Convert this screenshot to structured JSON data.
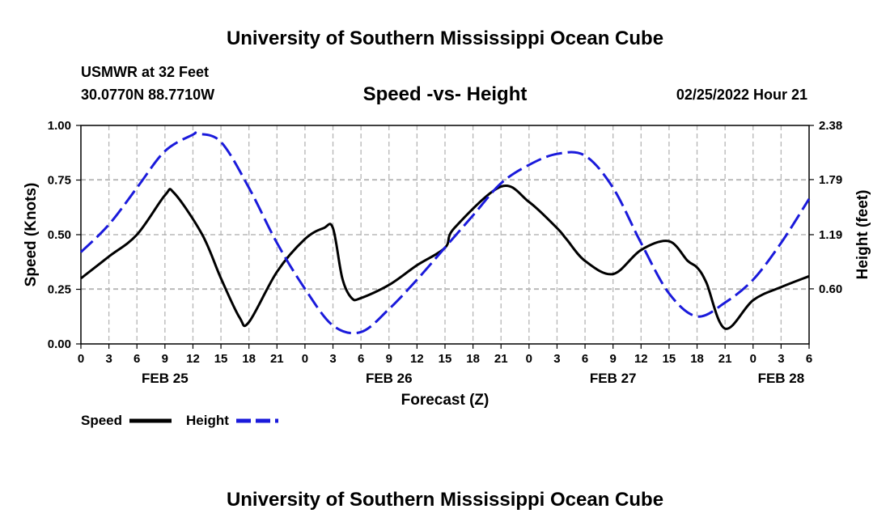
{
  "header": {
    "title": "University of Southern Mississippi Ocean Cube",
    "station": "USMWR at 32 Feet",
    "coords": "30.0770N  88.7710W",
    "subtitle": "Speed -vs- Height",
    "datetime": "02/25/2022 Hour 21"
  },
  "footer": {
    "title": "University of Southern Mississippi Ocean Cube"
  },
  "chart_data": {
    "type": "line",
    "title": "Speed -vs- Height",
    "xlabel": "Forecast (Z)",
    "ylabel": "Speed (Knots)",
    "y2label": "Height (feet)",
    "xlim": [
      0,
      78
    ],
    "ylim": [
      0,
      1.0
    ],
    "y2lim": [
      0.0,
      2.38
    ],
    "x_ticks": [
      0,
      3,
      6,
      9,
      12,
      15,
      18,
      21,
      24,
      27,
      30,
      33,
      36,
      39,
      42,
      45,
      48,
      51,
      54,
      57,
      60,
      63,
      66,
      69,
      72,
      75,
      78
    ],
    "x_tick_labels": [
      "0",
      "3",
      "6",
      "9",
      "12",
      "15",
      "18",
      "21",
      "0",
      "3",
      "6",
      "9",
      "12",
      "15",
      "18",
      "21",
      "0",
      "3",
      "6",
      "9",
      "12",
      "15",
      "18",
      "21",
      "0",
      "3",
      "6"
    ],
    "day_labels": [
      {
        "x": 9,
        "label": "FEB 25"
      },
      {
        "x": 33,
        "label": "FEB 26"
      },
      {
        "x": 57,
        "label": "FEB 27"
      },
      {
        "x": 75,
        "label": "FEB 28"
      }
    ],
    "y_ticks": [
      0.0,
      0.25,
      0.5,
      0.75,
      1.0
    ],
    "y_tick_labels": [
      "0.00",
      "0.25",
      "0.50",
      "0.75",
      "1.00"
    ],
    "y2_ticks": [
      0.6,
      1.19,
      1.79,
      2.38
    ],
    "y2_tick_labels": [
      "0.60",
      "1.19",
      "1.79",
      "2.38"
    ],
    "grid": true,
    "legend": "bottom-left",
    "series": [
      {
        "name": "Speed",
        "axis": "left",
        "color": "#000000",
        "style": "solid",
        "x": [
          0,
          3,
          6,
          9,
          10,
          13,
          15,
          17,
          18,
          21,
          24,
          26,
          27,
          28,
          29,
          30,
          33,
          36,
          39,
          40,
          45,
          48,
          51,
          52,
          54,
          57,
          60,
          63,
          65,
          66,
          67,
          69,
          72,
          75,
          78
        ],
        "values": [
          0.3,
          0.4,
          0.5,
          0.68,
          0.69,
          0.5,
          0.3,
          0.12,
          0.1,
          0.33,
          0.48,
          0.53,
          0.53,
          0.3,
          0.21,
          0.21,
          0.27,
          0.36,
          0.44,
          0.53,
          0.72,
          0.65,
          0.53,
          0.48,
          0.38,
          0.32,
          0.43,
          0.47,
          0.38,
          0.35,
          0.28,
          0.07,
          0.2,
          0.26,
          0.31
        ]
      },
      {
        "name": "Height",
        "axis": "right",
        "color": "#1a1adb",
        "style": "dashed",
        "x": [
          0,
          3,
          6,
          9,
          12,
          12.5,
          15,
          18,
          21,
          24,
          27,
          30,
          33,
          36,
          39,
          42,
          45,
          48,
          51,
          54,
          57,
          60,
          63,
          66,
          69,
          72,
          75,
          78
        ],
        "values": [
          1.0,
          1.3,
          1.7,
          2.1,
          2.28,
          2.29,
          2.2,
          1.7,
          1.1,
          0.6,
          0.2,
          0.13,
          0.38,
          0.7,
          1.05,
          1.4,
          1.75,
          1.95,
          2.07,
          2.05,
          1.7,
          1.1,
          0.55,
          0.3,
          0.45,
          0.7,
          1.1,
          1.58
        ]
      }
    ]
  },
  "legend": {
    "speed_label": "Speed",
    "height_label": "Height"
  }
}
